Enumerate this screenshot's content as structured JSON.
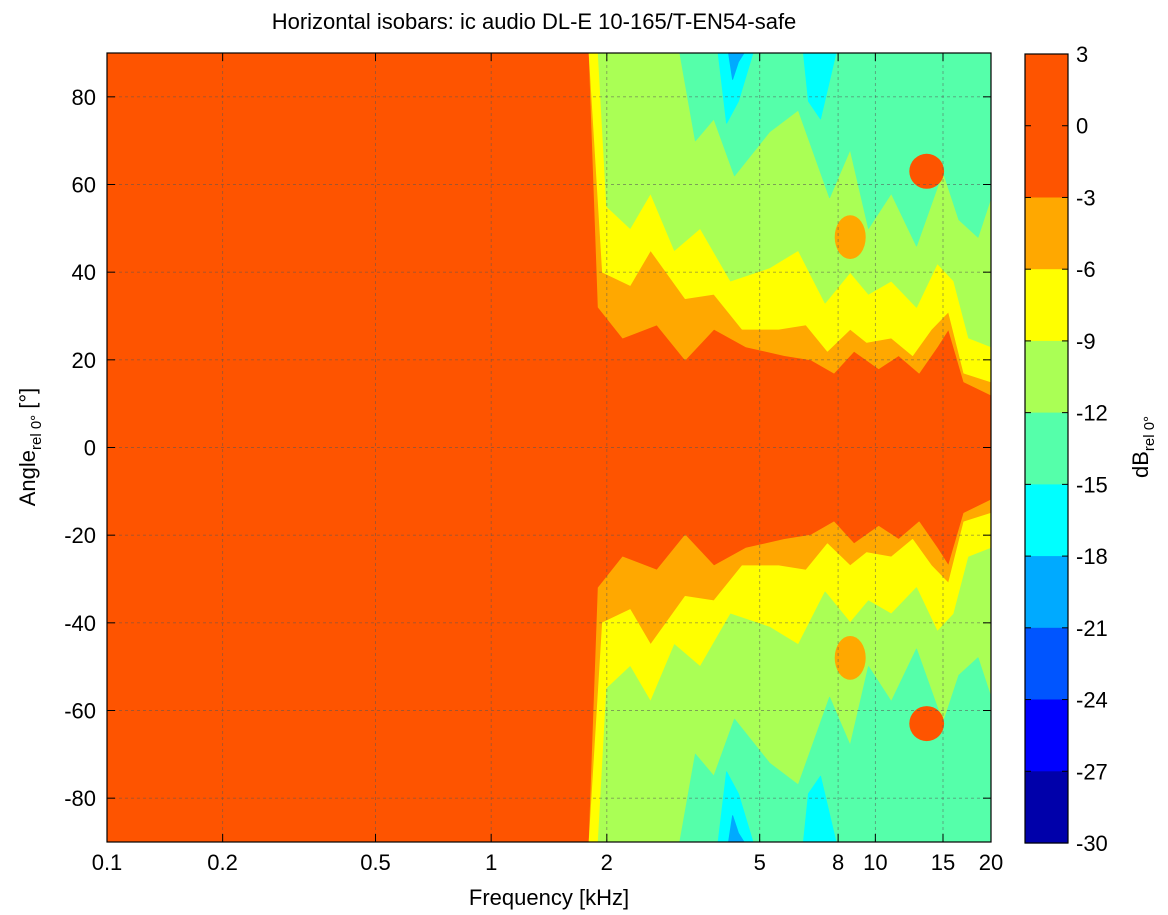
{
  "chart_data": {
    "type": "heatmap",
    "title": "Horizontal isobars: ic audio  DL-E 10-165/T-EN54-safe",
    "xlabel": "Frequency [kHz]",
    "ylabel": {
      "main": "Angle",
      "sub": "rel 0°",
      "unit": " [°]"
    },
    "zlabel": {
      "main": "dB",
      "sub": "rel 0°"
    },
    "x_scale": "log",
    "xlim": [
      0.1,
      20
    ],
    "ylim": [
      -90,
      90
    ],
    "x_ticks": [
      {
        "value": 0.1,
        "label": "0.1"
      },
      {
        "value": 0.2,
        "label": "0.2"
      },
      {
        "value": 0.5,
        "label": "0.5"
      },
      {
        "value": 1,
        "label": "1"
      },
      {
        "value": 2,
        "label": "2"
      },
      {
        "value": 5,
        "label": "5"
      },
      {
        "value": 8,
        "label": "8"
      },
      {
        "value": 10,
        "label": "10"
      },
      {
        "value": 15,
        "label": "15"
      },
      {
        "value": 20,
        "label": "20"
      }
    ],
    "y_ticks": [
      {
        "value": 80,
        "label": "80"
      },
      {
        "value": 60,
        "label": "60"
      },
      {
        "value": 40,
        "label": "40"
      },
      {
        "value": 20,
        "label": "20"
      },
      {
        "value": 0,
        "label": "0"
      },
      {
        "value": -20,
        "label": "-20"
      },
      {
        "value": -40,
        "label": "-40"
      },
      {
        "value": -60,
        "label": "-60"
      },
      {
        "value": -80,
        "label": "-80"
      }
    ],
    "x_grid": [
      0.1,
      0.2,
      0.5,
      1,
      2,
      5,
      8,
      10,
      15,
      20
    ],
    "grid": true,
    "colorbar": {
      "range": [
        -30,
        3
      ],
      "ticks": [
        "3",
        "0",
        "-3",
        "-6",
        "-9",
        "-12",
        "-15",
        "-18",
        "-21",
        "-24",
        "-27",
        "-30"
      ],
      "bands": [
        {
          "from": 0,
          "to": 3,
          "color": "#fe5400"
        },
        {
          "from": -3,
          "to": 0,
          "color": "#fe5400"
        },
        {
          "from": -6,
          "to": -3,
          "color": "#ffa800"
        },
        {
          "from": -9,
          "to": -6,
          "color": "#ffff00"
        },
        {
          "from": -12,
          "to": -9,
          "color": "#aaff55"
        },
        {
          "from": -15,
          "to": -12,
          "color": "#55ffaa"
        },
        {
          "from": -18,
          "to": -15,
          "color": "#00ffff"
        },
        {
          "from": -21,
          "to": -18,
          "color": "#00aaff"
        },
        {
          "from": -24,
          "to": -21,
          "color": "#0055ff"
        },
        {
          "from": -27,
          "to": -24,
          "color": "#0000ff"
        },
        {
          "from": -30,
          "to": -27,
          "color": "#0000aa"
        }
      ]
    },
    "contours": [
      {
        "level": -3,
        "color": "#ffa800",
        "half_angle": [
          [
            0.1,
            90
          ],
          [
            1.8,
            90
          ],
          [
            1.9,
            32
          ],
          [
            2.2,
            25
          ],
          [
            2.7,
            28
          ],
          [
            3.2,
            20
          ],
          [
            3.8,
            27
          ],
          [
            4.6,
            23
          ],
          [
            5.8,
            21
          ],
          [
            6.8,
            20
          ],
          [
            7.8,
            17
          ],
          [
            8.8,
            22
          ],
          [
            10.2,
            18
          ],
          [
            11.5,
            21
          ],
          [
            13,
            17
          ],
          [
            14.5,
            23
          ],
          [
            15.5,
            27
          ],
          [
            17,
            15
          ],
          [
            20,
            12
          ]
        ]
      },
      {
        "level": -6,
        "color": "#ffff00",
        "half_angle": [
          [
            0.1,
            90
          ],
          [
            1.8,
            90
          ],
          [
            1.95,
            40
          ],
          [
            2.3,
            37
          ],
          [
            2.6,
            45
          ],
          [
            3.2,
            34
          ],
          [
            3.8,
            35
          ],
          [
            4.5,
            27
          ],
          [
            5.6,
            27
          ],
          [
            6.6,
            28
          ],
          [
            7.5,
            22
          ],
          [
            8.6,
            27
          ],
          [
            9.5,
            24
          ],
          [
            11,
            25
          ],
          [
            12.5,
            21
          ],
          [
            14,
            27
          ],
          [
            15.5,
            31
          ],
          [
            17,
            17
          ],
          [
            20,
            15
          ]
        ]
      },
      {
        "level": -9,
        "color": "#aaff55",
        "half_angle": [
          [
            0.1,
            90
          ],
          [
            1.9,
            90
          ],
          [
            2.0,
            55
          ],
          [
            2.3,
            50
          ],
          [
            2.6,
            58
          ],
          [
            3.0,
            45
          ],
          [
            3.5,
            50
          ],
          [
            4.2,
            38
          ],
          [
            5.3,
            41
          ],
          [
            6.3,
            45
          ],
          [
            7.4,
            33
          ],
          [
            8.6,
            40
          ],
          [
            9.6,
            35
          ],
          [
            11,
            38
          ],
          [
            12.8,
            32
          ],
          [
            14.5,
            42
          ],
          [
            16,
            38
          ],
          [
            17.5,
            25
          ],
          [
            20,
            23
          ]
        ]
      },
      {
        "level": -12,
        "color": "#55ffaa",
        "half_angle": [
          [
            0.1,
            90
          ],
          [
            3.1,
            90
          ],
          [
            3.4,
            70
          ],
          [
            3.8,
            75
          ],
          [
            4.3,
            62
          ],
          [
            5.3,
            72
          ],
          [
            6.3,
            77
          ],
          [
            7.6,
            57
          ],
          [
            8.6,
            68
          ],
          [
            9.6,
            50
          ],
          [
            11,
            58
          ],
          [
            12.8,
            46
          ],
          [
            15,
            63
          ],
          [
            16.5,
            52
          ],
          [
            18.5,
            48
          ],
          [
            20,
            57
          ]
        ]
      },
      {
        "level": -15,
        "color": "#00ffff",
        "half_angle": [
          [
            0.1,
            90
          ],
          [
            3.9,
            90
          ],
          [
            4.1,
            74
          ],
          [
            4.4,
            79
          ],
          [
            4.8,
            90
          ],
          [
            6.5,
            90
          ],
          [
            6.7,
            79
          ],
          [
            7.2,
            75
          ],
          [
            7.9,
            90
          ],
          [
            20,
            90
          ]
        ]
      },
      {
        "level": -18,
        "color": "#00aaff",
        "half_angle": [
          [
            0.1,
            90
          ],
          [
            4.15,
            90
          ],
          [
            4.25,
            84
          ],
          [
            4.4,
            88
          ],
          [
            4.55,
            90
          ],
          [
            20,
            90
          ]
        ]
      }
    ],
    "lobes": [
      {
        "x": 13.6,
        "y": 63,
        "rx": 0.35,
        "ry": 4,
        "color": "#fe5400"
      },
      {
        "x": 13.6,
        "y": -63,
        "rx": 0.35,
        "ry": 4,
        "color": "#fe5400"
      },
      {
        "x": 8.6,
        "y": 48,
        "rx": 0.3,
        "ry": 5,
        "color": "#ffa800"
      },
      {
        "x": 8.6,
        "y": -48,
        "rx": 0.3,
        "ry": 5,
        "color": "#ffa800"
      }
    ]
  }
}
